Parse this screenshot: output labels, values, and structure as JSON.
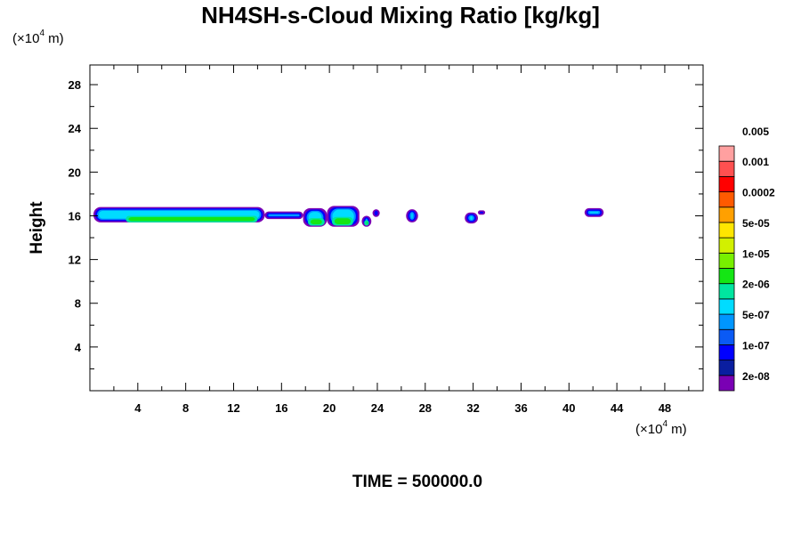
{
  "chart_data": {
    "type": "heatmap",
    "title": "NH4SH-s-Cloud Mixing Ratio [kg/kg]",
    "ylabel": "Height",
    "x_unit_label": "(×10",
    "x_unit_exp": "4",
    "x_unit_suffix": " m)",
    "y_unit_label": "(×10",
    "y_unit_exp": "4",
    "y_unit_suffix": " m)",
    "xlim": [
      0,
      51.2
    ],
    "ylim": [
      0,
      29.8
    ],
    "x_ticks": [
      4,
      8,
      12,
      16,
      20,
      24,
      28,
      32,
      36,
      40,
      44,
      48
    ],
    "y_ticks": [
      4,
      8,
      12,
      16,
      20,
      24,
      28
    ],
    "x_minor_step": 2,
    "y_minor_step": 2,
    "grid": false,
    "legend": {
      "placement": "right",
      "labels": [
        "2e-08",
        "1e-07",
        "5e-07",
        "2e-06",
        "1e-05",
        "5e-05",
        "0.0002",
        "0.001",
        "0.005"
      ],
      "colors": [
        "#7a00b4",
        "#0a1ea0",
        "#0000ff",
        "#0a5af5",
        "#0096ff",
        "#00dcff",
        "#00e6a0",
        "#14e614",
        "#78f000",
        "#d2f000",
        "#ffe600",
        "#ffa000",
        "#ff5a00",
        "#ff0000",
        "#ff5050",
        "#ffa0a0"
      ]
    },
    "clouds": [
      {
        "x_start": 0.3,
        "x_end": 14.6,
        "y_bottom": 15.4,
        "y_top": 16.8,
        "core_x": [
          3.0,
          14.0
        ],
        "core_y": [
          15.4,
          16.0
        ],
        "core_level": "1e-05"
      },
      {
        "x_start": 14.6,
        "x_end": 17.8,
        "y_bottom": 15.7,
        "y_top": 16.4
      },
      {
        "x_start": 17.8,
        "x_end": 19.8,
        "y_bottom": 15.0,
        "y_top": 16.7,
        "core_x": [
          18.2,
          19.6
        ],
        "core_y": [
          15.1,
          15.8
        ],
        "core_level": "1e-05"
      },
      {
        "x_start": 19.8,
        "x_end": 22.5,
        "y_bottom": 15.0,
        "y_top": 16.9,
        "core_x": [
          20.2,
          22.0
        ],
        "core_y": [
          15.1,
          15.9
        ],
        "core_level": "1e-05"
      },
      {
        "x_start": 22.7,
        "x_end": 23.5,
        "y_bottom": 15.0,
        "y_top": 16.0,
        "core_x": [
          22.9,
          23.3
        ],
        "core_y": [
          15.1,
          15.6
        ],
        "core_level": "1e-05"
      },
      {
        "x_start": 23.6,
        "x_end": 24.2,
        "y_bottom": 15.9,
        "y_top": 16.6
      },
      {
        "x_start": 26.4,
        "x_end": 27.4,
        "y_bottom": 15.4,
        "y_top": 16.6
      },
      {
        "x_start": 31.3,
        "x_end": 32.4,
        "y_bottom": 15.3,
        "y_top": 16.3
      },
      {
        "x_start": 32.4,
        "x_end": 33.0,
        "y_bottom": 16.1,
        "y_top": 16.5
      },
      {
        "x_start": 41.3,
        "x_end": 42.9,
        "y_bottom": 15.9,
        "y_top": 16.7
      }
    ]
  },
  "footer": {
    "label": "TIME = 500000.0"
  }
}
